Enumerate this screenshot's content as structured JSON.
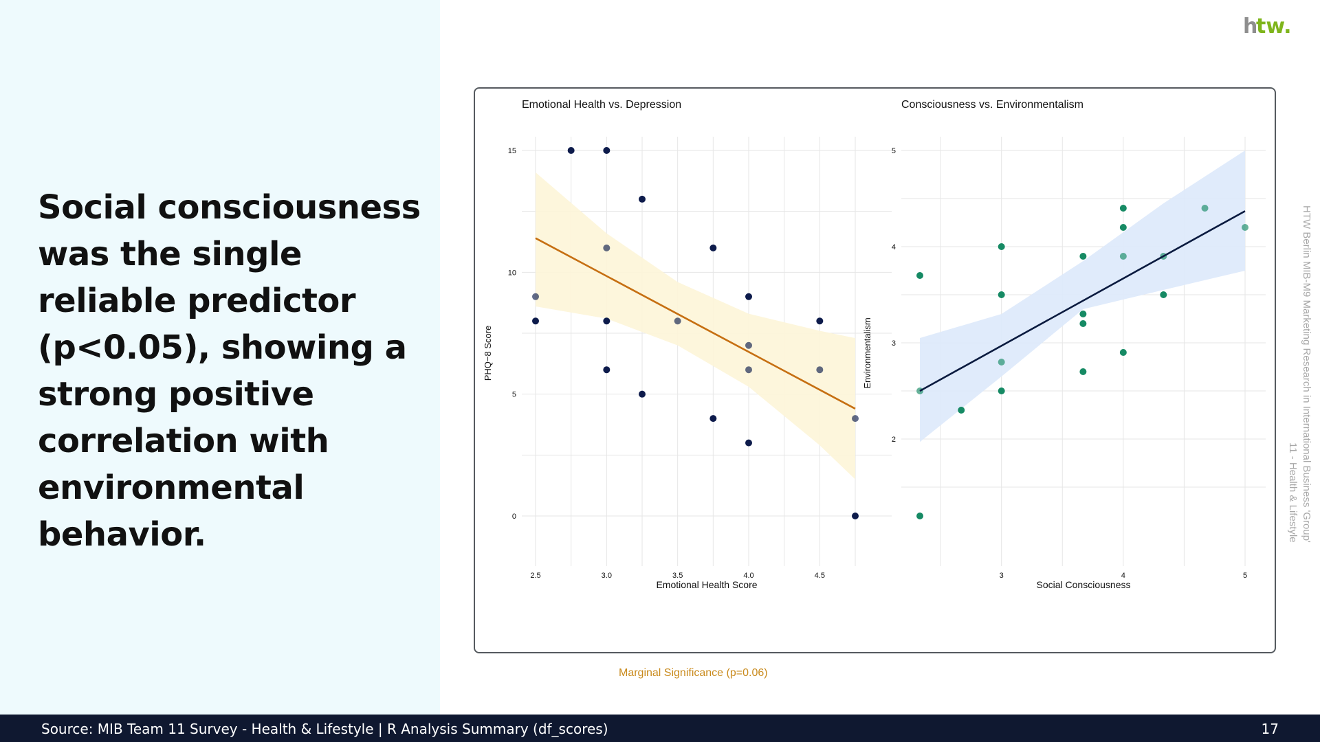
{
  "slide": {
    "headline": "Social consciousness was the single reliable predictor (p<0.05), showing a strong positive correlation with environmental behavior.",
    "logo_text": "htw.",
    "side_note": "HTW Berlin MIB-M9 Marketing Research in International Business 'Group' 11 - Health & Lifestyle",
    "caption": "Marginal Significance (p=0.06)",
    "footer_source": "Source: MIB Team 11 Survey - Health & Lifestyle | R Analysis Summary (df_scores)",
    "page_number": "17"
  },
  "colors": {
    "left_panel_bg": "#eefafd",
    "footer_bg": "#0f1830",
    "caption": "#c98a1c",
    "logo_gray": "#8e8e8e",
    "logo_green": "#7fb51c"
  },
  "chart_data": [
    {
      "type": "scatter",
      "title": "Emotional Health vs. Depression",
      "xlabel": "Emotional Health Score",
      "ylabel": "PHQ−8 Score",
      "xlim": [
        2.5,
        4.75
      ],
      "ylim": [
        0,
        15
      ],
      "xticks": [
        "2.5",
        "3.0",
        "3.5",
        "4.0",
        "4.5"
      ],
      "yticks": [
        "0",
        "5",
        "10",
        "15"
      ],
      "grid": true,
      "point_color": "#0d1b4b",
      "ribbon_color": "#fdf5d8",
      "line_color": "#c66f12",
      "points": [
        {
          "x": 2.5,
          "y": 9
        },
        {
          "x": 2.5,
          "y": 8
        },
        {
          "x": 2.75,
          "y": 15
        },
        {
          "x": 3.0,
          "y": 15
        },
        {
          "x": 3.0,
          "y": 11
        },
        {
          "x": 3.0,
          "y": 8
        },
        {
          "x": 3.0,
          "y": 6
        },
        {
          "x": 3.25,
          "y": 13
        },
        {
          "x": 3.25,
          "y": 5
        },
        {
          "x": 3.5,
          "y": 8
        },
        {
          "x": 3.75,
          "y": 11
        },
        {
          "x": 3.75,
          "y": 4
        },
        {
          "x": 4.0,
          "y": 9
        },
        {
          "x": 4.0,
          "y": 7
        },
        {
          "x": 4.0,
          "y": 6
        },
        {
          "x": 4.0,
          "y": 3
        },
        {
          "x": 4.5,
          "y": 8
        },
        {
          "x": 4.5,
          "y": 6
        },
        {
          "x": 4.75,
          "y": 4
        },
        {
          "x": 4.75,
          "y": 0
        }
      ],
      "fit": {
        "x": [
          2.5,
          4.75
        ],
        "y": [
          11.4,
          4.4
        ]
      },
      "ribbon": {
        "x": [
          2.5,
          3.0,
          3.5,
          4.0,
          4.5,
          4.75
        ],
        "upper": [
          14.1,
          11.6,
          9.6,
          8.3,
          7.6,
          7.3
        ],
        "lower": [
          8.6,
          8.1,
          7.0,
          5.3,
          2.9,
          1.5
        ]
      }
    },
    {
      "type": "scatter",
      "title": "Consciousness vs. Environmentalism",
      "xlabel": "Social Consciousness",
      "ylabel": "Environmentalism",
      "xlim": [
        2.33,
        5
      ],
      "ylim": [
        1.2,
        5
      ],
      "xticks": [
        "3",
        "4",
        "5"
      ],
      "yticks": [
        "2",
        "3",
        "4",
        "5"
      ],
      "grid": true,
      "point_color": "#168a64",
      "ribbon_color": "#dde9fb",
      "line_color": "#0a1a3f",
      "points": [
        {
          "x": 2.33,
          "y": 3.7
        },
        {
          "x": 2.33,
          "y": 2.5
        },
        {
          "x": 2.33,
          "y": 1.2
        },
        {
          "x": 2.67,
          "y": 2.3
        },
        {
          "x": 3.0,
          "y": 4.0
        },
        {
          "x": 3.0,
          "y": 3.5
        },
        {
          "x": 3.0,
          "y": 2.8
        },
        {
          "x": 3.0,
          "y": 2.5
        },
        {
          "x": 3.67,
          "y": 3.9
        },
        {
          "x": 3.67,
          "y": 3.3
        },
        {
          "x": 3.67,
          "y": 3.2
        },
        {
          "x": 3.67,
          "y": 2.7
        },
        {
          "x": 4.0,
          "y": 4.4
        },
        {
          "x": 4.0,
          "y": 4.2
        },
        {
          "x": 4.0,
          "y": 3.9
        },
        {
          "x": 4.0,
          "y": 2.9
        },
        {
          "x": 4.33,
          "y": 3.9
        },
        {
          "x": 4.33,
          "y": 3.5
        },
        {
          "x": 4.67,
          "y": 4.4
        },
        {
          "x": 5.0,
          "y": 4.2
        }
      ],
      "fit": {
        "x": [
          2.33,
          5.0
        ],
        "y": [
          2.5,
          4.37
        ]
      },
      "ribbon": {
        "x": [
          2.33,
          3.0,
          3.67,
          4.33,
          5.0
        ],
        "upper": [
          3.05,
          3.3,
          3.85,
          4.45,
          5.0
        ],
        "lower": [
          1.97,
          2.65,
          3.35,
          3.55,
          3.75
        ]
      }
    }
  ]
}
